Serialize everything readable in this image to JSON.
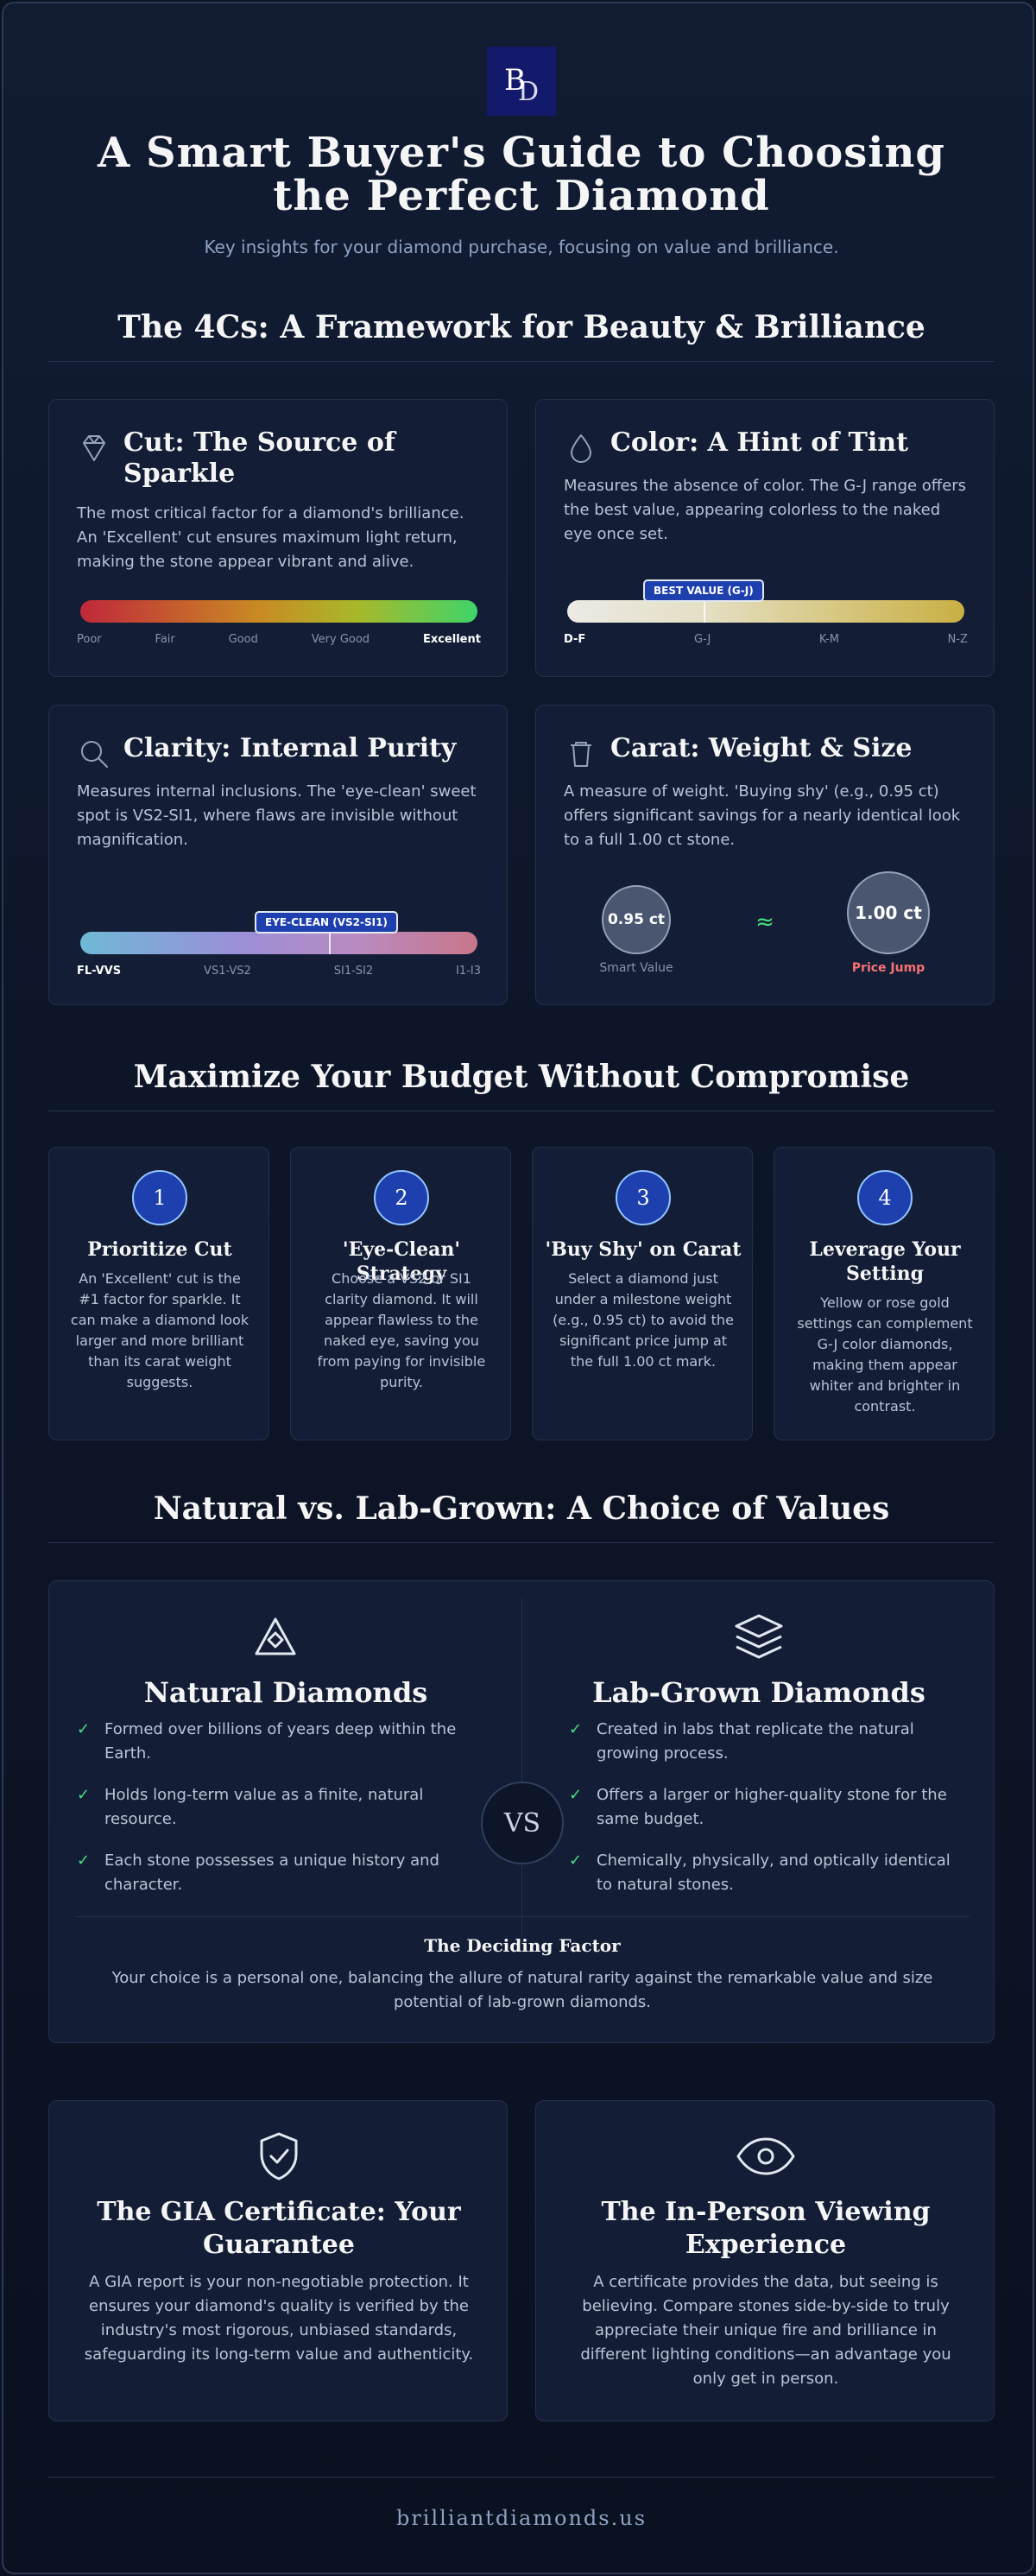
{
  "header": {
    "logo_text": "BD",
    "title": "A Smart Buyer's Guide to Choosing the Perfect Diamond",
    "subtitle": "Key insights for your diamond purchase, focusing on value and brilliance."
  },
  "four_cs": {
    "section_title": "The 4Cs: A Framework for Beauty & Brilliance",
    "cut": {
      "icon": "diamond-icon",
      "title": "Cut: The Source of Sparkle",
      "text": "The most critical factor for a diamond's brilliance. An 'Excellent' cut ensures maximum light return, making the stone appear vibrant and alive.",
      "scale": [
        "Poor",
        "Fair",
        "Good",
        "Very Good",
        "Excellent"
      ]
    },
    "color": {
      "icon": "drop-icon",
      "title": "Color: A Hint of Tint",
      "text": "Measures the absence of color. The G-J range offers the best value, appearing colorless to the naked eye once set.",
      "badge": "BEST VALUE (G-J)",
      "scale": [
        "D-F",
        "G-J",
        "K-M",
        "N-Z"
      ]
    },
    "clarity": {
      "icon": "search-icon",
      "title": "Clarity: Internal Purity",
      "text": "Measures internal inclusions. The 'eye-clean' sweet spot is VS2-SI1, where flaws are invisible without magnification.",
      "badge": "EYE-CLEAN (VS2-SI1)",
      "scale": [
        "FL-VVS",
        "VS1-VS2",
        "SI1-SI2",
        "I1-I3"
      ]
    },
    "carat": {
      "icon": "weight-icon",
      "title": "Carat: Weight & Size",
      "text": "A measure of weight. 'Buying shy' (e.g., 0.95 ct) offers significant savings for a nearly identical look to a full 1.00 ct stone.",
      "small_value": "0.95 ct",
      "small_label": "Smart Value",
      "approx": "≈",
      "big_value": "1.00 ct",
      "big_label": "Price Jump"
    }
  },
  "budget": {
    "section_title": "Maximize Your Budget Without Compromise",
    "steps": [
      {
        "num": "1",
        "title": "Prioritize Cut",
        "text": "An 'Excellent' cut is the #1 factor for sparkle. It can make a diamond look larger and more brilliant than its carat weight suggests."
      },
      {
        "num": "2",
        "title": "'Eye-Clean' Strategy",
        "text": "Choose a VS2 or SI1 clarity diamond. It will appear flawless to the naked eye, saving you from paying for invisible purity."
      },
      {
        "num": "3",
        "title": "'Buy Shy' on Carat",
        "text": "Select a diamond just under a milestone weight (e.g., 0.95 ct) to avoid the significant price jump at the full 1.00 ct mark."
      },
      {
        "num": "4",
        "title": "Leverage Your Setting",
        "text": "Yellow or rose gold settings can complement G-J color diamonds, making them appear whiter and brighter in contrast."
      }
    ]
  },
  "versus": {
    "section_title": "Natural vs. Lab-Grown: A Choice of Values",
    "natural": {
      "icon": "mountain-icon",
      "title": "Natural Diamonds",
      "items": [
        "Formed over billions of years deep within the Earth.",
        "Holds long-term value as a finite, natural resource.",
        "Each stone possesses a unique history and character."
      ]
    },
    "lab": {
      "icon": "layers-icon",
      "title": "Lab-Grown Diamonds",
      "items": [
        "Created in labs that replicate the natural growing process.",
        "Offers a larger or higher-quality stone for the same budget.",
        "Chemically, physically, and optically identical to natural stones."
      ]
    },
    "vs_label": "VS",
    "deciding_title": "The Deciding Factor",
    "deciding_text": "Your choice is a personal one, balancing the allure of natural rarity against the remarkable value and size potential of lab-grown diamonds."
  },
  "bottom": {
    "gia": {
      "icon": "shield-check-icon",
      "title": "The GIA Certificate: Your Guarantee",
      "text": "A GIA report is your non-negotiable protection. It ensures your diamond's quality is verified by the industry's most rigorous, unbiased standards, safeguarding its long-term value and authenticity."
    },
    "viewing": {
      "icon": "eye-icon",
      "title": "The In-Person Viewing Experience",
      "text": "A certificate provides the data, but seeing is believing. Compare stones side-by-side to truly appreciate their unique fire and brilliance in different lighting conditions—an advantage you only get in person."
    }
  },
  "footer": {
    "url": "brilliantdiamonds.us"
  }
}
